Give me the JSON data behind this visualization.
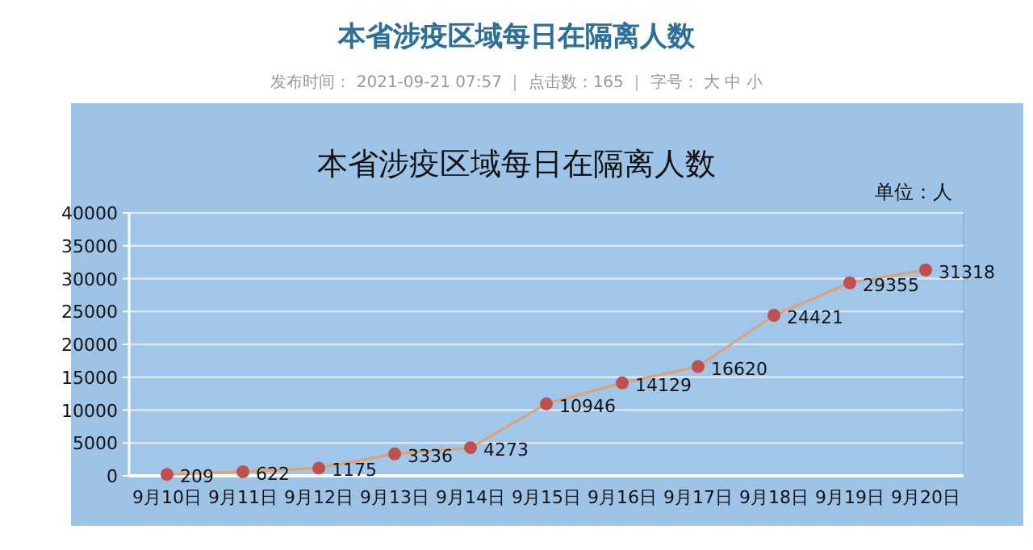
{
  "chart_data": {
    "type": "line",
    "title": "本省涉疫区域每日在隔离人数",
    "ylabel": "单位：人",
    "annotations": [
      "本省涉疫区域每日在隔离人数",
      "发布时间： 2021-09-21 07:57 ｜ 点击数：165 ｜ 字号： 大 中 小"
    ],
    "categories": [
      "9月10日",
      "9月11日",
      "9月12日",
      "9月13日",
      "9月14日",
      "9月15日",
      "9月16日",
      "9月17日",
      "9月18日",
      "9月19日",
      "9月20日"
    ],
    "series": [
      {
        "color": "#c0504d",
        "values": [
          209,
          622,
          1175,
          3336,
          4273,
          10946,
          14129,
          16620,
          24421,
          29355,
          31318
        ]
      }
    ],
    "ylim": [
      0,
      40000
    ],
    "yticks": [
      0,
      5000,
      10000,
      15000,
      20000,
      25000,
      30000,
      35000,
      40000
    ],
    "grid": "y",
    "marker": "circle",
    "data_labels": true
  }
}
